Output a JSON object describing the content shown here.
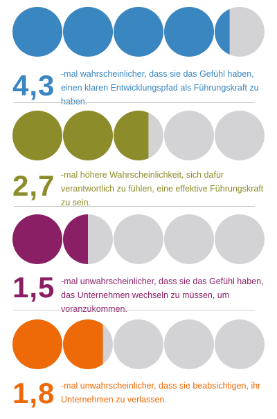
{
  "chart_data": {
    "type": "pictogram",
    "units_per_row": 5,
    "empty_color": "#d3d3d5",
    "rows": [
      {
        "value_label": "4,3",
        "value": 4.3,
        "text": "-mal wahrscheinlicher, dass sie das Gefühl haben, einen klaren Entwicklungspfad als Führungskraft zu haben.",
        "color": "#3a86c0"
      },
      {
        "value_label": "2,7",
        "value": 2.7,
        "text": "-mal höhere Wahrscheinlichkeit, sich dafür verantwortlich zu fühlen, eine effektive Führungskraft zu sein.",
        "color": "#8d8c2a"
      },
      {
        "value_label": "1,5",
        "value": 1.5,
        "text": "-mal unwahrscheinlicher, dass sie das Gefühl haben, das Unternehmen wechseln zu müssen, um voranzukommen.",
        "color": "#8b1f66"
      },
      {
        "value_label": "1,8",
        "value": 1.8,
        "text": "-mal unwahrscheinlicher, dass sie beabsichtigen, ihr Unternehmen zu verlassen.",
        "color": "#ee6a08"
      }
    ]
  }
}
